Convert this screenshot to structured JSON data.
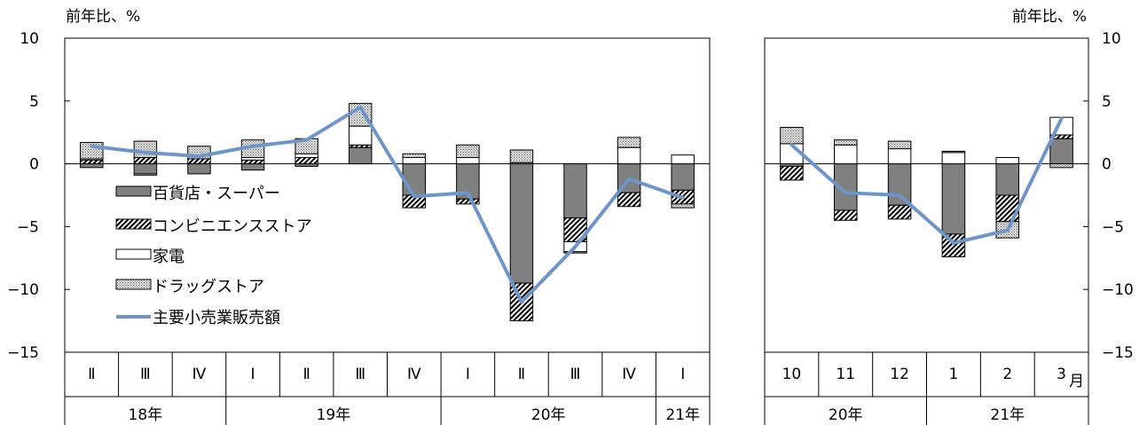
{
  "colors": {
    "department_store": "#808080",
    "convenience": "#ffffff",
    "electronics": "#ffffff",
    "drugstore": "#d9d9d9",
    "total_line": "#6f95c8",
    "axis": "#000000"
  },
  "chart_data": [
    {
      "type": "bar",
      "stacked": true,
      "unit_label": "前年比、%",
      "ylim": [
        -15,
        10
      ],
      "yticks": [
        10,
        5,
        0,
        -5,
        -10,
        -15
      ],
      "ytick_labels": [
        "10",
        "5",
        "0",
        "−5",
        "−10",
        "−15"
      ],
      "categories": [
        "Ⅱ",
        "Ⅲ",
        "Ⅳ",
        "Ⅰ",
        "Ⅱ",
        "Ⅲ",
        "Ⅳ",
        "Ⅰ",
        "Ⅱ",
        "Ⅲ",
        "Ⅳ",
        "Ⅰ"
      ],
      "groups": [
        {
          "label": "18年",
          "span": 3
        },
        {
          "label": "19年",
          "span": 4
        },
        {
          "label": "20年",
          "span": 4
        },
        {
          "label": "21年",
          "span": 1
        }
      ],
      "legend": [
        "百貨店・スーパー",
        "コンビニエンスストア",
        "家電",
        "ドラッグストア",
        "主要小売業販売額"
      ],
      "series": [
        {
          "name": "百貨店・スーパー",
          "key": "department_store",
          "values": [
            -0.3,
            -0.8,
            -0.8,
            -0.5,
            -0.2,
            1.3,
            -2.5,
            -2.8,
            -9.5,
            -4.3,
            -2.3,
            -2.1
          ]
        },
        {
          "name": "コンビニエンスストア",
          "key": "convenience",
          "values": [
            0.3,
            0.5,
            0.4,
            0.3,
            0.5,
            0.2,
            -1.0,
            -0.4,
            -3.0,
            -1.9,
            -1.1,
            -1.1
          ]
        },
        {
          "name": "家電",
          "key": "electronics",
          "values": [
            0.1,
            -0.1,
            0.0,
            0.2,
            0.3,
            1.5,
            0.5,
            0.5,
            0.1,
            -0.8,
            1.3,
            0.7
          ]
        },
        {
          "name": "ドラッグストア",
          "key": "drugstore",
          "values": [
            1.3,
            1.3,
            1.0,
            1.4,
            1.2,
            1.8,
            0.3,
            1.0,
            1.0,
            -0.1,
            0.8,
            -0.3
          ]
        }
      ],
      "line": {
        "name": "主要小売業販売額",
        "values": [
          1.4,
          0.9,
          0.6,
          1.4,
          1.9,
          4.5,
          -2.6,
          -2.3,
          -11.0,
          -6.6,
          -1.2,
          -2.7
        ]
      }
    },
    {
      "type": "bar",
      "stacked": true,
      "unit_label": "前年比、%",
      "ylim": [
        -15,
        10
      ],
      "yticks": [
        10,
        5,
        0,
        -5,
        -10,
        -15
      ],
      "ytick_labels": [
        "10",
        "5",
        "0",
        "−5",
        "−10",
        "−15"
      ],
      "categories": [
        "10",
        "11",
        "12",
        "1",
        "2",
        "3"
      ],
      "month_suffix": "月",
      "groups": [
        {
          "label": "20年",
          "span": 3
        },
        {
          "label": "21年",
          "span": 3
        }
      ],
      "series": [
        {
          "name": "百貨店・スーパー",
          "key": "department_store",
          "values": [
            -0.2,
            -3.7,
            -3.3,
            -5.6,
            -2.5,
            2.0
          ]
        },
        {
          "name": "コンビニエンスストア",
          "key": "convenience",
          "values": [
            -1.1,
            -0.8,
            -1.1,
            -1.8,
            -2.1,
            0.3
          ]
        },
        {
          "name": "家電",
          "key": "electronics",
          "values": [
            1.6,
            1.5,
            1.2,
            0.9,
            0.5,
            1.4
          ]
        },
        {
          "name": "ドラッグストア",
          "key": "drugstore",
          "values": [
            1.3,
            0.4,
            0.6,
            0.1,
            -1.3,
            -0.3
          ]
        }
      ],
      "line": {
        "name": "主要小売業販売額",
        "values": [
          1.5,
          -2.3,
          -2.5,
          -6.3,
          -5.3,
          3.6
        ]
      }
    }
  ]
}
